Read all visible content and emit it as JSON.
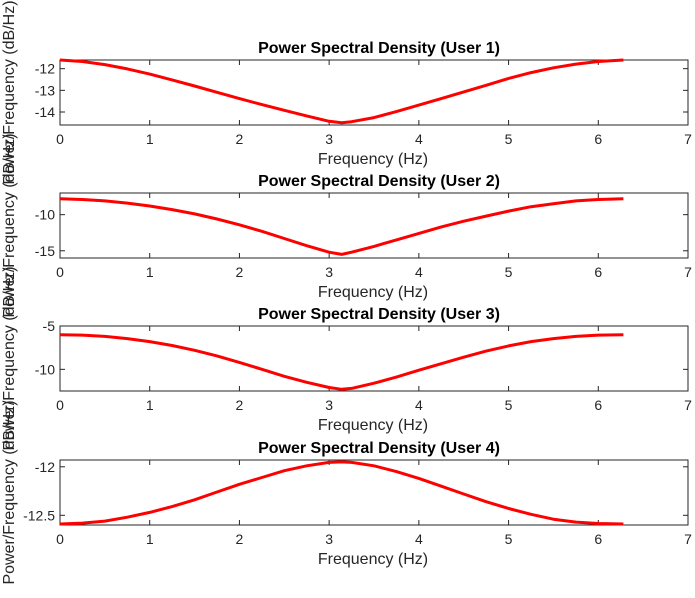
{
  "chart_data": [
    {
      "type": "line",
      "title": "Power Spectral Density (User 1)",
      "xlabel": "Frequency (Hz)",
      "ylabel": "Power/Frequency (dB/Hz)",
      "xlim": [
        0,
        7
      ],
      "ylim": [
        -14.6,
        -11.6
      ],
      "xticks": [
        "0",
        "1",
        "2",
        "3",
        "4",
        "5",
        "6",
        "7"
      ],
      "yticks": [
        {
          "value": -12,
          "label": "-12"
        },
        {
          "value": -13,
          "label": "-13"
        },
        {
          "value": -14,
          "label": "-14"
        }
      ],
      "series": [
        {
          "color": "#ff0000",
          "x": [
            0,
            0.25,
            0.5,
            0.75,
            1,
            1.25,
            1.5,
            1.75,
            2,
            2.25,
            2.5,
            2.75,
            3,
            3.14,
            3.25,
            3.5,
            3.75,
            4,
            4.25,
            4.5,
            4.75,
            5,
            5.25,
            5.5,
            5.75,
            6,
            6.28
          ],
          "y": [
            -11.6,
            -11.67,
            -11.81,
            -12.01,
            -12.25,
            -12.52,
            -12.8,
            -13.09,
            -13.38,
            -13.66,
            -13.92,
            -14.18,
            -14.43,
            -14.5,
            -14.45,
            -14.26,
            -13.98,
            -13.68,
            -13.38,
            -13.07,
            -12.77,
            -12.45,
            -12.18,
            -11.96,
            -11.79,
            -11.67,
            -11.6
          ]
        }
      ]
    },
    {
      "type": "line",
      "title": "Power Spectral Density (User 2)",
      "xlabel": "Frequency (Hz)",
      "ylabel": "Power/Frequency (dB/Hz)",
      "xlim": [
        0,
        7
      ],
      "ylim": [
        -16.0,
        -7.0
      ],
      "xticks": [
        "0",
        "1",
        "2",
        "3",
        "4",
        "5",
        "6",
        "7"
      ],
      "yticks": [
        {
          "value": -10,
          "label": "-10"
        },
        {
          "value": -15,
          "label": "-15"
        }
      ],
      "series": [
        {
          "color": "#ff0000",
          "x": [
            0,
            0.25,
            0.5,
            0.75,
            1,
            1.25,
            1.5,
            1.75,
            2,
            2.25,
            2.5,
            2.75,
            3,
            3.14,
            3.25,
            3.5,
            3.75,
            4,
            4.25,
            4.5,
            4.75,
            5,
            5.25,
            5.5,
            5.75,
            6,
            6.28
          ],
          "y": [
            -7.8,
            -7.9,
            -8.1,
            -8.4,
            -8.8,
            -9.3,
            -9.9,
            -10.6,
            -11.4,
            -12.3,
            -13.3,
            -14.3,
            -15.2,
            -15.5,
            -15.2,
            -14.4,
            -13.5,
            -12.6,
            -11.7,
            -10.9,
            -10.2,
            -9.5,
            -8.9,
            -8.5,
            -8.1,
            -7.9,
            -7.8
          ]
        }
      ]
    },
    {
      "type": "line",
      "title": "Power Spectral Density (User 3)",
      "xlabel": "Frequency (Hz)",
      "ylabel": "Power/Frequency (dB/Hz)",
      "xlim": [
        0,
        7
      ],
      "ylim": [
        -12.5,
        -5.0
      ],
      "xticks": [
        "0",
        "1",
        "2",
        "3",
        "4",
        "5",
        "6",
        "7"
      ],
      "yticks": [
        {
          "value": -5,
          "label": "-5"
        },
        {
          "value": -10,
          "label": "-10"
        }
      ],
      "series": [
        {
          "color": "#ff0000",
          "x": [
            0,
            0.25,
            0.5,
            0.75,
            1,
            1.25,
            1.5,
            1.75,
            2,
            2.25,
            2.5,
            2.75,
            3,
            3.14,
            3.25,
            3.5,
            3.75,
            4,
            4.25,
            4.5,
            4.75,
            5,
            5.25,
            5.5,
            5.75,
            6,
            6.28
          ],
          "y": [
            -6.0,
            -6.05,
            -6.2,
            -6.45,
            -6.8,
            -7.25,
            -7.8,
            -8.45,
            -9.2,
            -10.0,
            -10.8,
            -11.5,
            -12.1,
            -12.3,
            -12.2,
            -11.6,
            -10.9,
            -10.1,
            -9.35,
            -8.6,
            -7.9,
            -7.3,
            -6.8,
            -6.45,
            -6.2,
            -6.05,
            -6.0
          ]
        }
      ]
    },
    {
      "type": "line",
      "title": "Power Spectral Density (User 4)",
      "xlabel": "Frequency (Hz)",
      "ylabel": "Power/Frequency (dB/Hz)",
      "xlim": [
        0,
        7
      ],
      "ylim": [
        -12.6,
        -11.93
      ],
      "xticks": [
        "0",
        "1",
        "2",
        "3",
        "4",
        "5",
        "6",
        "7"
      ],
      "yticks": [
        {
          "value": -12,
          "label": "-12"
        },
        {
          "value": -12.5,
          "label": "-12.5"
        }
      ],
      "series": [
        {
          "color": "#ff0000",
          "x": [
            0,
            0.25,
            0.5,
            0.75,
            1,
            1.25,
            1.5,
            1.75,
            2,
            2.25,
            2.5,
            2.75,
            3,
            3.14,
            3.25,
            3.5,
            3.75,
            4,
            4.25,
            4.5,
            4.75,
            5,
            5.25,
            5.5,
            5.75,
            6,
            6.28
          ],
          "y": [
            -12.59,
            -12.58,
            -12.56,
            -12.52,
            -12.47,
            -12.41,
            -12.34,
            -12.26,
            -12.18,
            -12.11,
            -12.04,
            -11.99,
            -11.955,
            -11.95,
            -11.955,
            -11.99,
            -12.05,
            -12.12,
            -12.2,
            -12.28,
            -12.36,
            -12.43,
            -12.49,
            -12.54,
            -12.57,
            -12.585,
            -12.59
          ]
        }
      ]
    }
  ]
}
